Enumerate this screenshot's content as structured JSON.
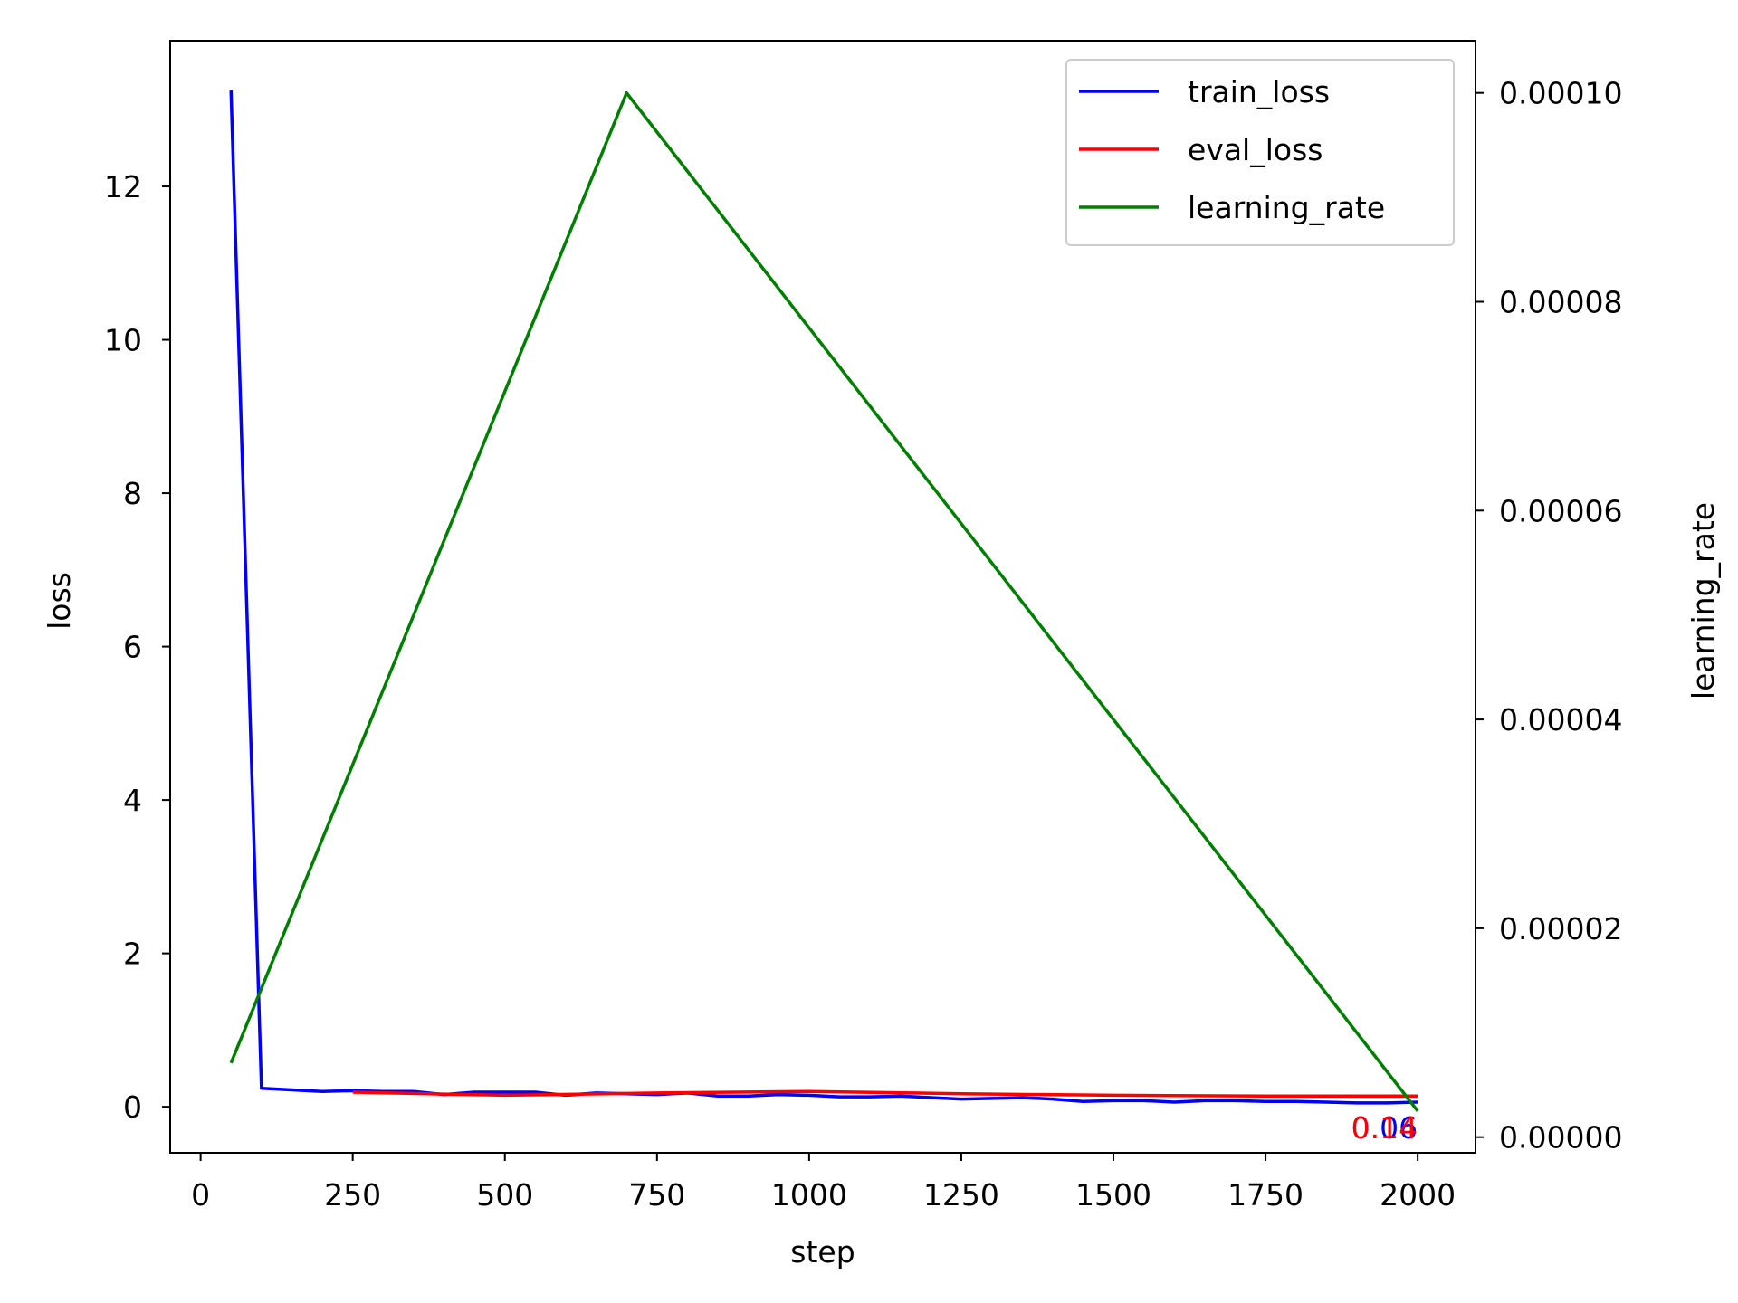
{
  "chart_data": {
    "type": "line",
    "title": "",
    "xlabel": "step",
    "ylabel": "loss",
    "y2label": "learning_rate",
    "xlim": [
      -50,
      2095
    ],
    "ylim": [
      -0.6,
      13.9
    ],
    "y2lim": [
      -1.5e-06,
      0.000105
    ],
    "x_ticks": [
      0,
      250,
      500,
      750,
      1000,
      1250,
      1500,
      1750,
      2000
    ],
    "x_tick_labels": [
      "0",
      "250",
      "500",
      "750",
      "1000",
      "1250",
      "1500",
      "1750",
      "2000"
    ],
    "y_ticks": [
      0,
      2,
      4,
      6,
      8,
      10,
      12
    ],
    "y_tick_labels": [
      "0",
      "2",
      "4",
      "6",
      "8",
      "10",
      "12"
    ],
    "y2_ticks": [
      0,
      2e-05,
      4e-05,
      6e-05,
      8e-05,
      0.0001
    ],
    "y2_tick_labels": [
      "0.00000",
      "0.00002",
      "0.00004",
      "0.00006",
      "0.00008",
      "0.00010"
    ],
    "grid": false,
    "legend_position": "top-right",
    "series": [
      {
        "name": "train_loss",
        "axis": "left",
        "color": "#0000ff",
        "x": [
          50,
          100,
          150,
          200,
          250,
          300,
          350,
          400,
          450,
          500,
          550,
          600,
          650,
          700,
          750,
          800,
          850,
          900,
          950,
          1000,
          1050,
          1100,
          1150,
          1200,
          1250,
          1300,
          1350,
          1400,
          1450,
          1500,
          1550,
          1600,
          1650,
          1700,
          1750,
          1800,
          1850,
          1900,
          1950,
          2000
        ],
        "y": [
          13.25,
          0.24,
          0.22,
          0.2,
          0.21,
          0.2,
          0.2,
          0.16,
          0.19,
          0.19,
          0.19,
          0.15,
          0.18,
          0.17,
          0.16,
          0.18,
          0.14,
          0.14,
          0.16,
          0.15,
          0.13,
          0.13,
          0.14,
          0.12,
          0.1,
          0.11,
          0.12,
          0.1,
          0.07,
          0.08,
          0.08,
          0.06,
          0.08,
          0.08,
          0.07,
          0.07,
          0.06,
          0.05,
          0.05,
          0.06
        ]
      },
      {
        "name": "eval_loss",
        "axis": "left",
        "color": "#ff0000",
        "x": [
          250,
          500,
          750,
          1000,
          1250,
          1500,
          1750,
          2000
        ],
        "y": [
          0.19,
          0.15,
          0.18,
          0.2,
          0.17,
          0.15,
          0.14,
          0.14
        ]
      },
      {
        "name": "learning_rate",
        "axis": "right",
        "color": "#008000",
        "x": [
          50,
          700,
          2000
        ],
        "y": [
          7.1e-06,
          0.0001,
          2.5e-06
        ]
      }
    ],
    "annotations": [
      {
        "text": "0.06",
        "x": 2000,
        "y": 0.06,
        "series": "train_loss",
        "color": "#0000ff"
      },
      {
        "text": "0.14",
        "x": 2000,
        "y": 0.14,
        "series": "eval_loss",
        "color": "#ff0000"
      }
    ]
  }
}
